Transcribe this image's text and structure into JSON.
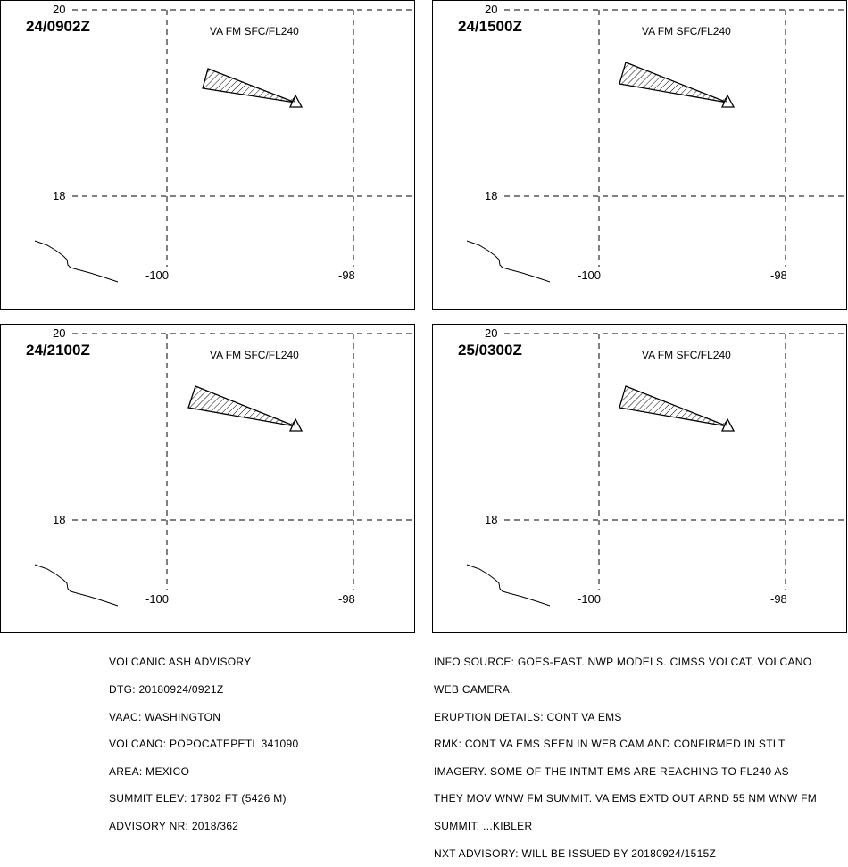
{
  "panels": [
    {
      "time": "24/0902Z",
      "level": "VA FM SFC/FL240"
    },
    {
      "time": "24/1500Z",
      "level": "VA FM SFC/FL240"
    },
    {
      "time": "24/2100Z",
      "level": "VA FM SFC/FL240"
    },
    {
      "time": "25/0300Z",
      "level": "VA FM SFC/FL240"
    }
  ],
  "map": {
    "lat_labels": [
      "20",
      "18"
    ],
    "lon_labels": [
      "-100",
      "-98"
    ],
    "volcano_marker": "*"
  },
  "advisory": {
    "lines": [
      "VOLCANIC ASH ADVISORY",
      "DTG: 20180924/0921Z",
      "VAAC: WASHINGTON",
      "VOLCANO: POPOCATEPETL 341090",
      "AREA: MEXICO",
      "SUMMIT ELEV: 17802 FT (5426 M)",
      "ADVISORY NR: 2018/362"
    ]
  },
  "info": {
    "lines": [
      "INFO SOURCE: GOES-EAST. NWP MODELS. CIMSS VOLCAT. VOLCANO",
      "WEB CAMERA.",
      "ERUPTION DETAILS: CONT VA EMS",
      "RMK: CONT VA EMS SEEN IN WEB CAM AND CONFIRMED IN STLT",
      "IMAGERY. SOME OF THE INTMT EMS ARE REACHING TO FL240 AS",
      "THEY MOV WNW FM SUMMIT. VA EMS EXTD OUT ARND 55 NM WNW FM",
      "SUMMIT. ...KIBLER",
      "NXT ADVISORY: WILL BE ISSUED BY 20180924/1515Z"
    ]
  }
}
